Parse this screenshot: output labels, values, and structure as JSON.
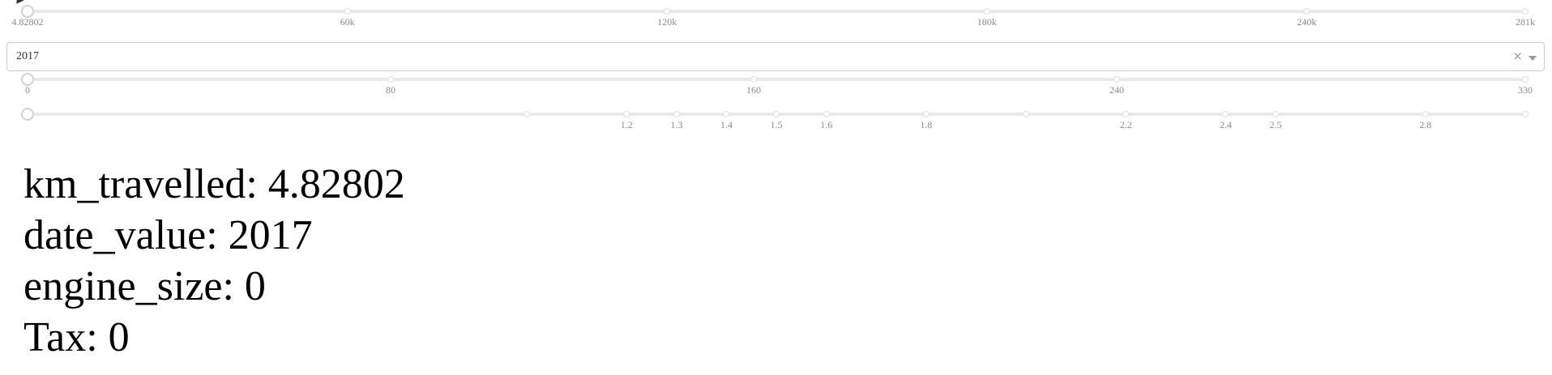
{
  "km_slider": {
    "value": 4.82802,
    "min": 4.82802,
    "max": 281000,
    "marks": [
      {
        "value": 4.82802,
        "label": "4.82802"
      },
      {
        "value": 60000,
        "label": "60k"
      },
      {
        "value": 120000,
        "label": "120k"
      },
      {
        "value": 180000,
        "label": "180k"
      },
      {
        "value": 240000,
        "label": "240k"
      },
      {
        "value": 281000,
        "label": "281k"
      }
    ]
  },
  "date_dropdown": {
    "value": "2017",
    "clear_icon": "×",
    "arrow_icon": "chevron-down-icon"
  },
  "engine_slider": {
    "value": 0,
    "min": 0,
    "max": 330,
    "marks": [
      {
        "value": 0,
        "label": "0"
      },
      {
        "value": 80,
        "label": "80"
      },
      {
        "value": 160,
        "label": "160"
      },
      {
        "value": 240,
        "label": "240"
      },
      {
        "value": 330,
        "label": "330"
      }
    ]
  },
  "tax_slider": {
    "value": 0,
    "min": 0,
    "max": 3,
    "marks": [
      {
        "value": 1.2,
        "label": "1.2"
      },
      {
        "value": 1.3,
        "label": "1.3"
      },
      {
        "value": 1.4,
        "label": "1.4"
      },
      {
        "value": 1.5,
        "label": "1.5"
      },
      {
        "value": 1.6,
        "label": "1.6"
      },
      {
        "value": 1.8,
        "label": "1.8"
      },
      {
        "value": 2.2,
        "label": "2.2"
      },
      {
        "value": 2.4,
        "label": "2.4"
      },
      {
        "value": 2.5,
        "label": "2.5"
      },
      {
        "value": 2.8,
        "label": "2.8"
      }
    ],
    "unlabeled_dots": [
      1.0,
      2.0,
      3.0
    ]
  },
  "output": {
    "km_line": "km_travelled: 4.82802",
    "date_line": "date_value: 2017",
    "engine_line": "engine_size: 0",
    "tax_line": "Tax: 0"
  }
}
